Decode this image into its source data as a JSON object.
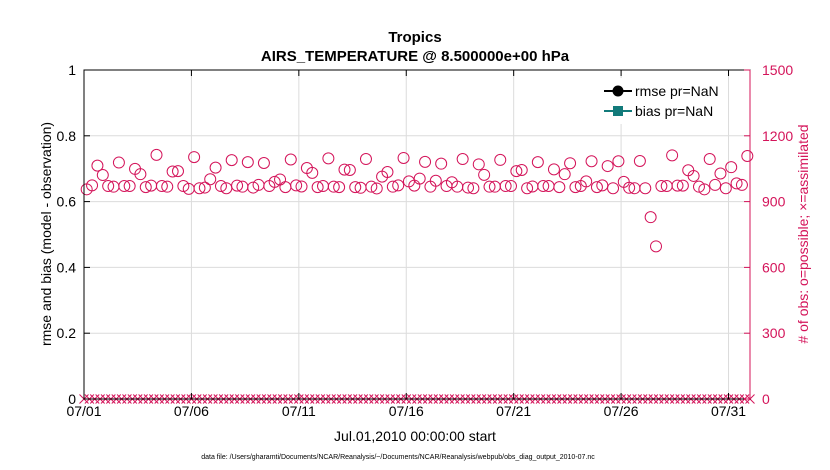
{
  "chart_data": {
    "type": "scatter",
    "title": "Tropics",
    "subtitle": "AIRS_TEMPERATURE @ 8.500000e+00 hPa",
    "xlabel": "Jul.01,2010 00:00:00 start",
    "ylabel_left": "rmse and bias (model - observation)",
    "ylabel_right": "# of obs: o=possible; ×=assimilated",
    "footnote": "data file: /Users/gharamti/Documents/NCAR/Reanalysis/~/Documents/NCAR/Reanalysis/webpub/obs_diag_output_2010-07.nc",
    "xlim": [
      1,
      32
    ],
    "ylim_left": [
      0,
      1
    ],
    "ylim_right": [
      0,
      1500
    ],
    "x_ticks": [
      1,
      6,
      11,
      16,
      21,
      26,
      31
    ],
    "x_tick_labels": [
      "07/01",
      "07/06",
      "07/11",
      "07/16",
      "07/21",
      "07/26",
      "07/31"
    ],
    "y_ticks_left": [
      0,
      0.2,
      0.4,
      0.6,
      0.8,
      1
    ],
    "y_tick_labels_left": [
      "0",
      "0.2",
      "0.4",
      "0.6",
      "0.8",
      "1"
    ],
    "y_ticks_right": [
      0,
      300,
      600,
      900,
      1200,
      1500
    ],
    "y_tick_labels_right": [
      "0",
      "300",
      "600",
      "900",
      "1200",
      "1500"
    ],
    "grid": true,
    "legend_position": "top-right",
    "series": [
      {
        "name": "rmse pr=NaN",
        "axis": "left",
        "color": "#000000",
        "marker": "circle-filled",
        "values": []
      },
      {
        "name": "bias pr=NaN",
        "axis": "left",
        "color": "#127a7a",
        "marker": "square-filled",
        "values": []
      },
      {
        "name": "obs possible",
        "axis": "right",
        "color": "#d4145a",
        "marker": "circle-open",
        "x": [
          1.125,
          1.375,
          1.625,
          1.875,
          2.125,
          2.375,
          2.625,
          2.875,
          3.125,
          3.375,
          3.625,
          3.875,
          4.125,
          4.375,
          4.625,
          4.875,
          5.125,
          5.375,
          5.625,
          5.875,
          6.125,
          6.375,
          6.625,
          6.875,
          7.125,
          7.375,
          7.625,
          7.875,
          8.125,
          8.375,
          8.625,
          8.875,
          9.125,
          9.375,
          9.625,
          9.875,
          10.125,
          10.375,
          10.625,
          10.875,
          11.125,
          11.375,
          11.625,
          11.875,
          12.125,
          12.375,
          12.625,
          12.875,
          13.125,
          13.375,
          13.625,
          13.875,
          14.125,
          14.375,
          14.625,
          14.875,
          15.125,
          15.375,
          15.625,
          15.875,
          16.125,
          16.375,
          16.625,
          16.875,
          17.125,
          17.375,
          17.625,
          17.875,
          18.125,
          18.375,
          18.625,
          18.875,
          19.125,
          19.375,
          19.625,
          19.875,
          20.125,
          20.375,
          20.625,
          20.875,
          21.125,
          21.375,
          21.625,
          21.875,
          22.125,
          22.375,
          22.625,
          22.875,
          23.125,
          23.375,
          23.625,
          23.875,
          24.125,
          24.375,
          24.625,
          24.875,
          25.125,
          25.375,
          25.625,
          25.875,
          26.125,
          26.375,
          26.625,
          26.875,
          27.125,
          27.375,
          27.625,
          27.875,
          28.125,
          28.375,
          28.625,
          28.875,
          29.125,
          29.375,
          29.625,
          29.875,
          30.125,
          30.375,
          30.625,
          30.875,
          31.125,
          31.375,
          31.625,
          31.875
        ],
        "values": [
          956,
          974,
          1064,
          1021,
          971,
          968,
          1078,
          971,
          971,
          1049,
          1025,
          966,
          973,
          1113,
          971,
          968,
          1037,
          1039,
          971,
          958,
          1103,
          961,
          964,
          1002,
          1055,
          971,
          961,
          1089,
          973,
          968,
          1080,
          964,
          976,
          1076,
          971,
          990,
          1001,
          966,
          1092,
          974,
          969,
          1053,
          1031,
          966,
          971,
          1097,
          968,
          966,
          1046,
          1044,
          966,
          963,
          1094,
          968,
          960,
          1014,
          1035,
          968,
          974,
          1099,
          992,
          973,
          1005,
          1081,
          968,
          995,
          1073,
          971,
          988,
          968,
          1094,
          964,
          961,
          1070,
          1022,
          968,
          968,
          1090,
          971,
          971,
          1039,
          1044,
          961,
          969,
          1080,
          971,
          971,
          1047,
          966,
          1025,
          1075,
          966,
          971,
          992,
          1084,
          966,
          974,
          1062,
          961,
          1084,
          990,
          963,
          961,
          1085,
          961,
          829,
          696,
          971,
          971,
          1111,
          973,
          973,
          1043,
          1017,
          968,
          956,
          1094,
          976,
          1028,
          961,
          1057,
          983,
          976,
          1108
        ]
      },
      {
        "name": "obs assimilated",
        "axis": "right",
        "color": "#d4145a",
        "marker": "x",
        "values_note": "all zero",
        "x_start": 1.0,
        "x_step": 0.25,
        "count": 125,
        "value": 0
      }
    ]
  }
}
